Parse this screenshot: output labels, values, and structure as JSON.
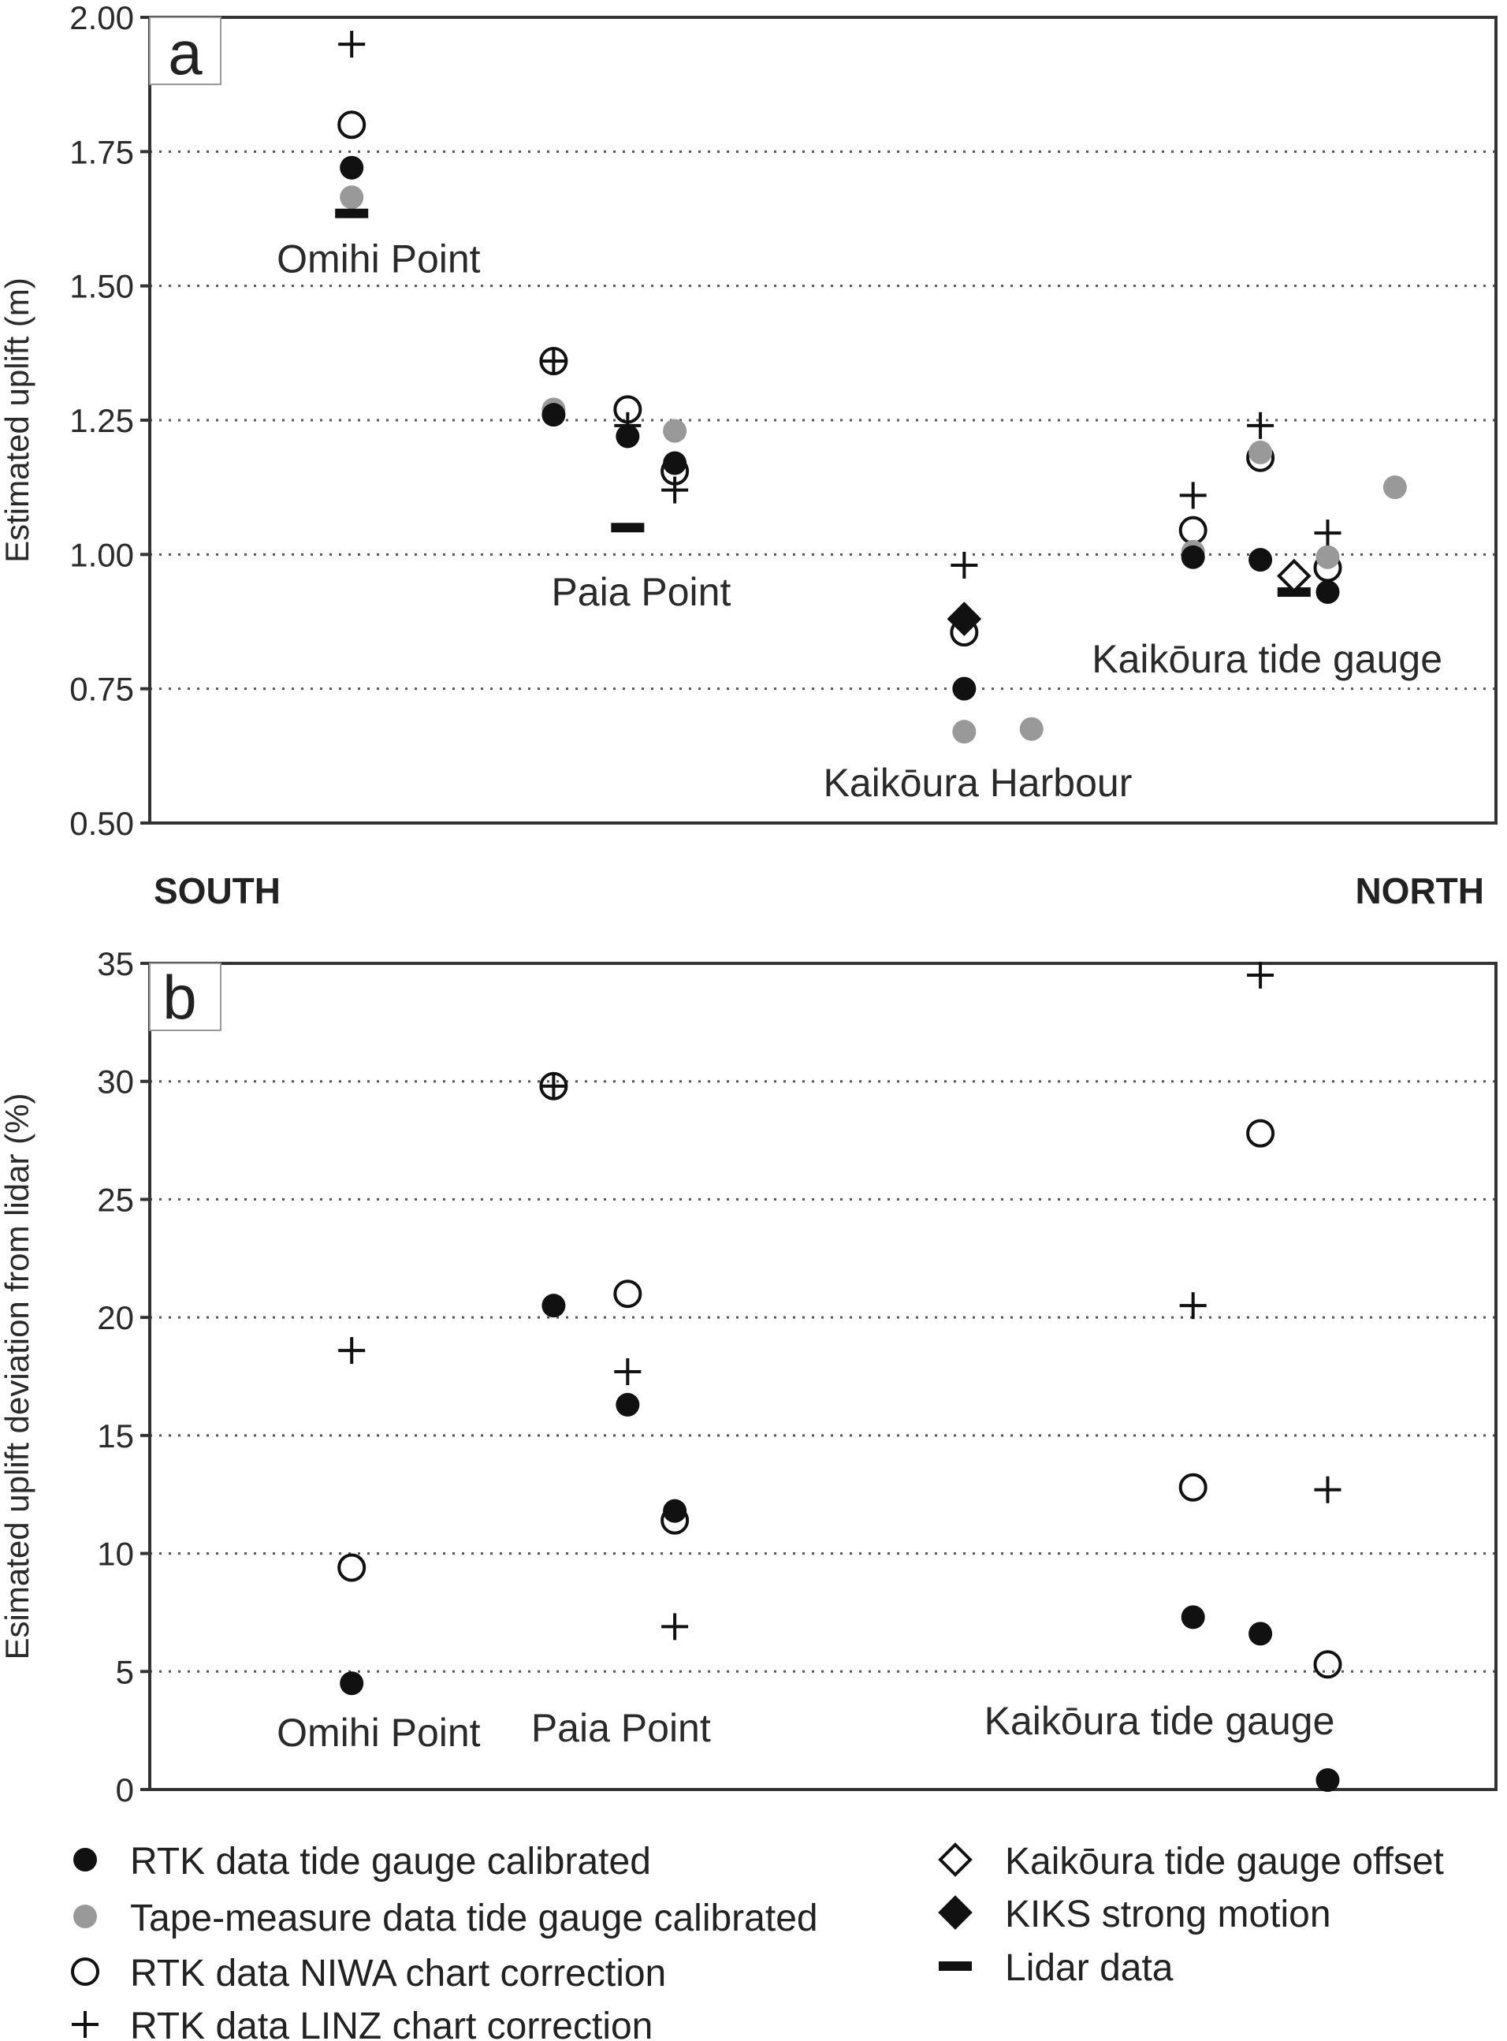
{
  "compass": {
    "south": "SOUTH",
    "north": "NORTH"
  },
  "marker_styles": {
    "rtk_tg": {
      "shape": "filled-circle",
      "color": "#111111"
    },
    "tape_tg": {
      "shape": "filled-circle",
      "color": "#999999"
    },
    "rtk_niwa": {
      "shape": "open-circle",
      "color": "#111111"
    },
    "rtk_linz": {
      "shape": "plus",
      "color": "#111111"
    },
    "tg_offset": {
      "shape": "open-diamond",
      "color": "#111111"
    },
    "kiks": {
      "shape": "filled-diamond",
      "color": "#111111"
    },
    "lidar": {
      "shape": "dash",
      "color": "#111111"
    }
  },
  "legend": {
    "left": [
      {
        "key": "rtk_tg",
        "label": "RTK data tide gauge calibrated"
      },
      {
        "key": "tape_tg",
        "label": "Tape-measure data tide gauge calibrated"
      },
      {
        "key": "rtk_niwa",
        "label": "RTK data NIWA chart correction"
      },
      {
        "key": "rtk_linz",
        "label": "RTK data LINZ chart correction"
      }
    ],
    "right": [
      {
        "key": "tg_offset",
        "label": "Kaikōura tide gauge offset"
      },
      {
        "key": "kiks",
        "label": "KIKS strong motion"
      },
      {
        "key": "lidar",
        "label": "Lidar data"
      }
    ]
  },
  "chart_data": [
    {
      "panel": "a",
      "type": "scatter",
      "ylabel": "Estimated uplift (m)",
      "xlim": [
        0,
        100
      ],
      "ylim": [
        0.5,
        2.0
      ],
      "yticks": [
        "0.50",
        "0.75",
        "1.00",
        "1.25",
        "1.50",
        "1.75",
        "2.00"
      ],
      "grid": true,
      "site_labels": [
        {
          "text": "Omihi Point",
          "x": 17,
          "y": 1.55
        },
        {
          "text": "Paia Point",
          "x": 36.5,
          "y": 0.93
        },
        {
          "text": "Kaikōura Harbour",
          "x": 61.5,
          "y": 0.575
        },
        {
          "text": "Kaikōura tide gauge",
          "x": 83,
          "y": 0.805
        }
      ],
      "series": [
        {
          "key": "rtk_linz",
          "name": "RTK data LINZ chart correction",
          "points": [
            [
              15,
              1.95
            ],
            [
              30,
              1.36
            ],
            [
              35.5,
              1.24
            ],
            [
              39,
              1.12
            ],
            [
              60.5,
              0.98
            ],
            [
              77.5,
              1.11
            ],
            [
              82.5,
              1.24
            ],
            [
              87.5,
              1.04
            ]
          ]
        },
        {
          "key": "rtk_niwa",
          "name": "RTK data NIWA chart correction",
          "points": [
            [
              15,
              1.8
            ],
            [
              30,
              1.36
            ],
            [
              35.5,
              1.27
            ],
            [
              39,
              1.155
            ],
            [
              60.5,
              0.855
            ],
            [
              77.5,
              1.045
            ],
            [
              82.5,
              1.18
            ],
            [
              87.5,
              0.975
            ]
          ]
        },
        {
          "key": "tape_tg",
          "name": "Tape-measure data tide gauge calibrated",
          "points": [
            [
              15,
              1.665
            ],
            [
              30,
              1.27
            ],
            [
              39,
              1.23
            ],
            [
              60.5,
              0.67
            ],
            [
              65.5,
              0.675
            ],
            [
              77.5,
              1.005
            ],
            [
              82.5,
              1.19
            ],
            [
              87.5,
              0.995
            ],
            [
              92.5,
              1.125
            ]
          ]
        },
        {
          "key": "rtk_tg",
          "name": "RTK data tide gauge calibrated",
          "points": [
            [
              15,
              1.72
            ],
            [
              30,
              1.26
            ],
            [
              35.5,
              1.22
            ],
            [
              39,
              1.17
            ],
            [
              60.5,
              0.75
            ],
            [
              77.5,
              0.995
            ],
            [
              82.5,
              0.99
            ],
            [
              87.5,
              0.93
            ]
          ]
        },
        {
          "key": "lidar",
          "name": "Lidar data",
          "points": [
            [
              15,
              1.635
            ],
            [
              35.5,
              1.05
            ],
            [
              85,
              0.93
            ]
          ]
        },
        {
          "key": "tg_offset",
          "name": "Kaikōura tide gauge offset",
          "points": [
            [
              85,
              0.96
            ]
          ]
        },
        {
          "key": "kiks",
          "name": "KIKS strong motion",
          "points": [
            [
              60.5,
              0.88
            ]
          ]
        }
      ]
    },
    {
      "panel": "b",
      "type": "scatter",
      "ylabel": "Esimated uplift deviation from lidar (%)",
      "xlim": [
        0,
        100
      ],
      "ylim": [
        0,
        35
      ],
      "yticks": [
        "0",
        "5",
        "10",
        "15",
        "20",
        "25",
        "30",
        "35"
      ],
      "grid": true,
      "site_labels": [
        {
          "text": "Omihi Point",
          "x": 17,
          "y": 2.4
        },
        {
          "text": "Paia Point",
          "x": 35,
          "y": 2.6
        },
        {
          "text": "Kaikōura tide gauge",
          "x": 75,
          "y": 2.9
        }
      ],
      "series": [
        {
          "key": "rtk_linz",
          "name": "RTK data LINZ chart correction",
          "points": [
            [
              15,
              18.6
            ],
            [
              30,
              29.8
            ],
            [
              35.5,
              17.7
            ],
            [
              39,
              6.9
            ],
            [
              77.5,
              20.5
            ],
            [
              82.5,
              34.5
            ],
            [
              87.5,
              12.7
            ]
          ]
        },
        {
          "key": "rtk_niwa",
          "name": "RTK data NIWA chart correction",
          "points": [
            [
              15,
              9.4
            ],
            [
              30,
              29.8
            ],
            [
              35.5,
              21.0
            ],
            [
              39,
              11.4
            ],
            [
              77.5,
              12.8
            ],
            [
              82.5,
              27.8
            ],
            [
              87.5,
              5.3
            ]
          ]
        },
        {
          "key": "rtk_tg",
          "name": "RTK data tide gauge calibrated",
          "points": [
            [
              15,
              4.5
            ],
            [
              30,
              20.5
            ],
            [
              35.5,
              16.3
            ],
            [
              39,
              11.8
            ],
            [
              77.5,
              7.3
            ],
            [
              82.5,
              6.6
            ],
            [
              87.5,
              0.4
            ]
          ]
        }
      ]
    }
  ]
}
